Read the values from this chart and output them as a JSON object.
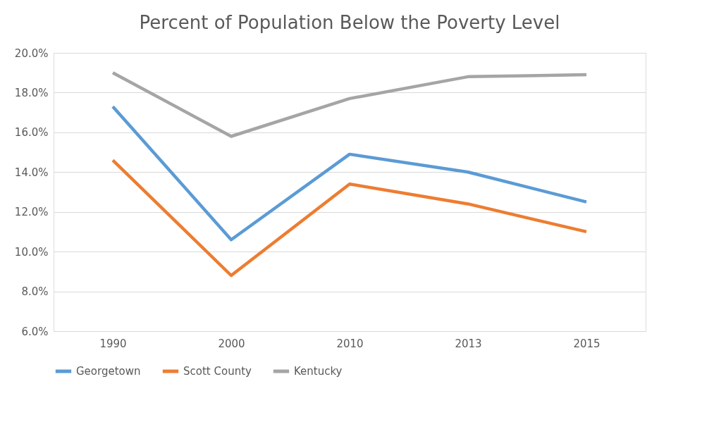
{
  "chart_data": {
    "type": "line",
    "title": "Percent of Population Below the Poverty Level",
    "categories": [
      "1990",
      "2000",
      "2010",
      "2013",
      "2015"
    ],
    "series": [
      {
        "name": "Georgetown",
        "color": "#5b9bd5",
        "values": [
          17.3,
          10.6,
          14.9,
          14.0,
          12.5
        ]
      },
      {
        "name": "Scott County",
        "color": "#ed7d31",
        "values": [
          14.6,
          8.8,
          13.4,
          12.4,
          11.0
        ]
      },
      {
        "name": "Kentucky",
        "color": "#a5a5a5",
        "values": [
          19.0,
          15.8,
          17.7,
          18.8,
          18.9
        ]
      }
    ],
    "ylim": [
      6,
      20
    ],
    "yticks": [
      {
        "value": 6,
        "label": "6.0%"
      },
      {
        "value": 8,
        "label": "8.0%"
      },
      {
        "value": 10,
        "label": "10.0%"
      },
      {
        "value": 12,
        "label": "12.0%"
      },
      {
        "value": 14,
        "label": "14.0%"
      },
      {
        "value": 16,
        "label": "16.0%"
      },
      {
        "value": 18,
        "label": "18.0%"
      },
      {
        "value": 20,
        "label": "20.0%"
      }
    ],
    "grid": "y",
    "legend": "bottom",
    "marker": "none",
    "line_style": "solid"
  }
}
